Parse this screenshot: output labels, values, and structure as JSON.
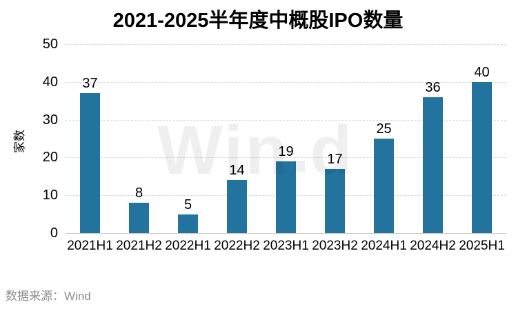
{
  "chart_data": {
    "type": "bar",
    "title": "2021-2025半年度中概股IPO数量",
    "categories": [
      "2021H1",
      "2021H2",
      "2022H1",
      "2022H2",
      "2023H1",
      "2023H2",
      "2024H1",
      "2024H2",
      "2025H1"
    ],
    "values": [
      37,
      8,
      5,
      14,
      19,
      17,
      25,
      36,
      40
    ],
    "xlabel": "",
    "ylabel": "家数",
    "ylim": [
      0,
      50
    ],
    "yticks": [
      0,
      10,
      20,
      30,
      40,
      50
    ],
    "grid": "horizontal-dashed",
    "legend": "none",
    "bar_color": "#22749E",
    "value_labels_shown": true
  },
  "watermark": {
    "part1": "Win",
    "part2": "d"
  },
  "footer": {
    "source_label": "数据来源：Wind"
  }
}
